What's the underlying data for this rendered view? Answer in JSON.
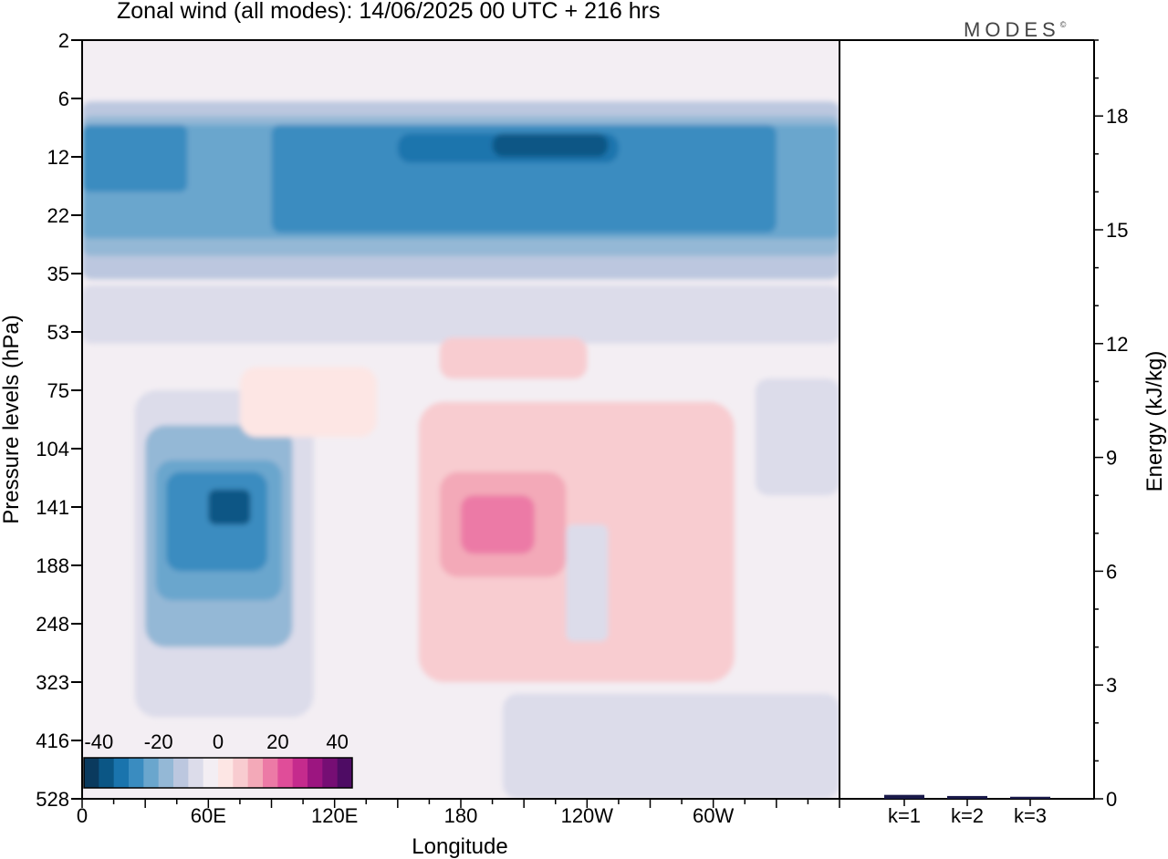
{
  "header": {
    "title": "Zonal wind (all modes):  14/06/2025  00 UTC  + 216 hrs",
    "logo": "MODES",
    "logo_mark": "©"
  },
  "chart_data": [
    {
      "type": "heatmap",
      "title": "Zonal wind (all modes):  14/06/2025  00 UTC  + 216 hrs",
      "xlabel": "Longitude",
      "ylabel": "Pressure levels (hPa)",
      "x_ticks": [
        "0",
        "60E",
        "120E",
        "180",
        "120W",
        "60W"
      ],
      "x_tick_degrees": [
        0,
        60,
        120,
        180,
        240,
        300
      ],
      "x_range": [
        0,
        360
      ],
      "y_ticks": [
        "2",
        "6",
        "12",
        "22",
        "35",
        "53",
        "75",
        "104",
        "141",
        "188",
        "248",
        "323",
        "416",
        "528"
      ],
      "y_scale": "model levels (top 2 hPa, bottom 528 hPa)",
      "colorbar": {
        "tick_labels": [
          "-40",
          "-20",
          "0",
          "20",
          "40"
        ],
        "range": [
          -45,
          45
        ],
        "step": 5,
        "colors": [
          "#0a3a5e",
          "#0b5685",
          "#1a74ad",
          "#3a8cc0",
          "#6aa6cd",
          "#94b8d6",
          "#bcc7df",
          "#dcdcea",
          "#f3eef3",
          "#fde6e4",
          "#f8ccd0",
          "#f3a9b8",
          "#ec7aa6",
          "#e04d99",
          "#c52b8d",
          "#9c1580",
          "#760e74",
          "#4e0c64"
        ]
      },
      "features": [
        {
          "region": "upper easterly jet near 12 hPa",
          "approx_value": -30,
          "longitude": [
            0,
            360
          ]
        },
        {
          "region": "strongest core near 12 hPa",
          "approx_value": -40,
          "longitude": [
            195,
            250
          ]
        },
        {
          "region": "easterly core near 141 hPa",
          "approx_value": -30,
          "longitude": [
            30,
            90
          ]
        },
        {
          "region": "westerly region 104-248 hPa",
          "approx_value": 15,
          "longitude": [
            160,
            240
          ]
        }
      ]
    },
    {
      "type": "bar",
      "ylabel": "Energy (kJ/kg)",
      "categories": [
        "k=1",
        "k=2",
        "k=3"
      ],
      "values": [
        0.08,
        0.05,
        0.03
      ],
      "ylim": [
        0,
        20
      ],
      "y_ticks": [
        "0",
        "3",
        "6",
        "9",
        "12",
        "15",
        "18"
      ]
    }
  ]
}
